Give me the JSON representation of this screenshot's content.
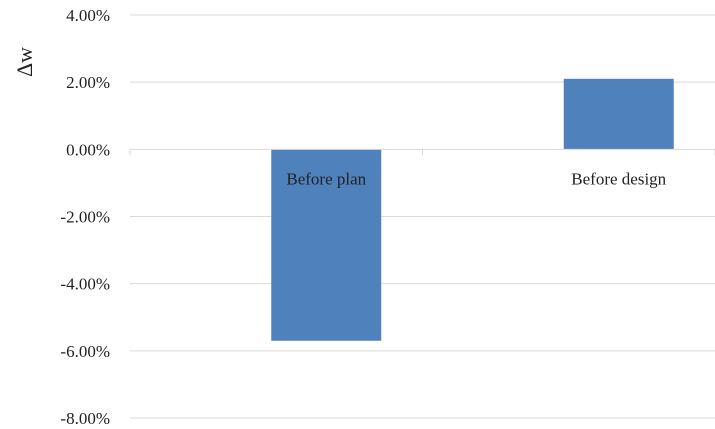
{
  "chart_data": {
    "type": "bar",
    "title": "",
    "xlabel": "",
    "ylabel": "Δw",
    "categories": [
      "Before plan",
      "Before design"
    ],
    "values": [
      -5.7,
      2.1
    ],
    "value_unit": "%",
    "ylim": [
      -8,
      4
    ],
    "ytick_values": [
      4,
      2,
      0,
      -2,
      -4,
      -6,
      -8
    ],
    "ytick_labels": [
      "4.00%",
      "2.00%",
      "0.00%",
      "-2.00%",
      "-4.00%",
      "-6.00%",
      "-8.00%"
    ],
    "grid": true,
    "legend": "none",
    "bar_color": "#4f81bd"
  }
}
